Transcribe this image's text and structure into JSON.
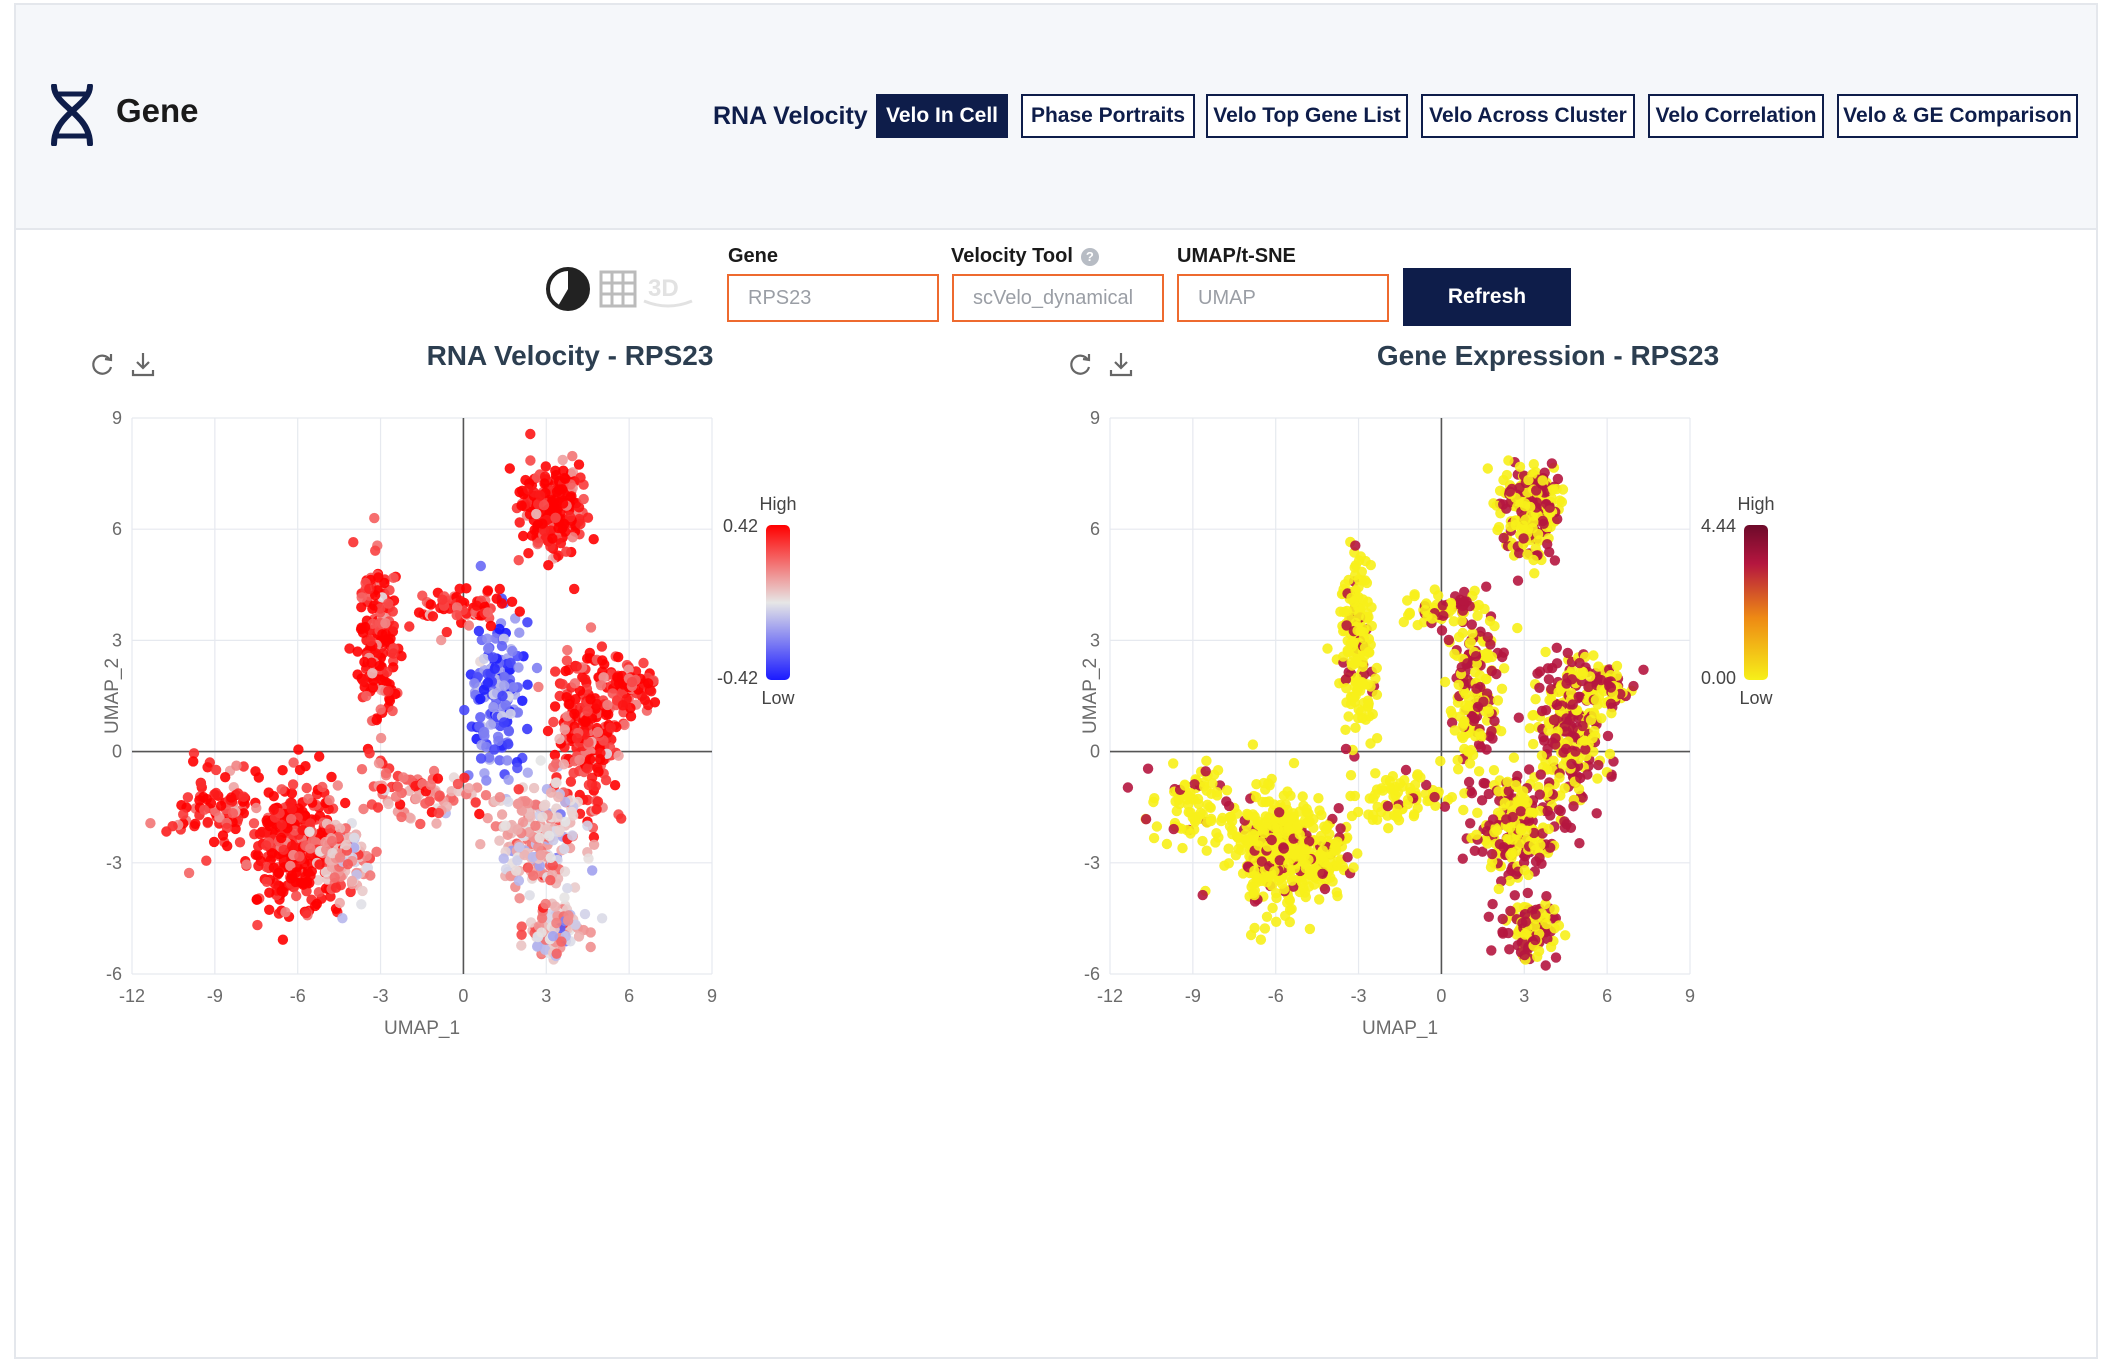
{
  "app": {
    "brand": "Gene"
  },
  "nav": {
    "section_label": "RNA Velocity",
    "tabs": [
      {
        "label": "Velo In Cell",
        "active": true
      },
      {
        "label": "Phase Portraits",
        "active": false
      },
      {
        "label": "Velo Top Gene List",
        "active": false
      },
      {
        "label": "Velo Across Cluster",
        "active": false
      },
      {
        "label": "Velo Correlation",
        "active": false
      },
      {
        "label": "Velo & GE Comparison",
        "active": false
      }
    ]
  },
  "view_icons": [
    "pie-chart-icon",
    "table-grid-icon",
    "3d-icon"
  ],
  "controls": {
    "gene": {
      "label": "Gene",
      "value": "RPS23"
    },
    "velocity_tool": {
      "label": "Velocity Tool",
      "value": "scVelo_dynamical",
      "help": "?"
    },
    "embedding": {
      "label": "UMAP/t-SNE",
      "value": "UMAP"
    },
    "refresh_label": "Refresh"
  },
  "colors": {
    "navy": "#0e1d4a",
    "orange_border": "#ee6a2f",
    "velo_high": "#ff0000",
    "velo_mid": "#e6e6e6",
    "velo_low": "#1a1aff",
    "ge_high": "#b5163f",
    "ge_low": "#f7f019"
  },
  "chart_data": [
    {
      "type": "scatter",
      "title": "RNA Velocity - RPS23",
      "xlabel": "UMAP_1",
      "ylabel": "UMAP_2",
      "xlim": [
        -12,
        9
      ],
      "ylim": [
        -6,
        9
      ],
      "xticks": [
        "-12",
        "-9",
        "-6",
        "-3",
        "0",
        "3",
        "6",
        "9"
      ],
      "yticks": [
        "-6",
        "-3",
        "0",
        "3",
        "6",
        "9"
      ],
      "colorbar": {
        "high_label": "High",
        "low_label": "Low",
        "max": "0.42",
        "min": "-0.42"
      },
      "clusters": [
        {
          "center": [
            3.2,
            6.5
          ],
          "spread": [
            0.7,
            0.8
          ],
          "n": 230,
          "value": 0.4
        },
        {
          "center": [
            -3.1,
            2.9
          ],
          "spread": [
            0.45,
            1.5
          ],
          "n": 180,
          "value": 0.38
        },
        {
          "center": [
            -6.1,
            -2.6
          ],
          "spread": [
            1.0,
            1.1
          ],
          "n": 340,
          "value": 0.4
        },
        {
          "center": [
            -9.0,
            -1.5
          ],
          "spread": [
            1.1,
            0.7
          ],
          "n": 90,
          "value": 0.37
        },
        {
          "center": [
            -4.3,
            -2.8
          ],
          "spread": [
            0.7,
            0.7
          ],
          "n": 120,
          "value": 0.12
        },
        {
          "center": [
            1.2,
            1.5
          ],
          "spread": [
            0.6,
            1.4
          ],
          "n": 180,
          "value": -0.25
        },
        {
          "center": [
            4.6,
            0.5
          ],
          "spread": [
            0.8,
            1.4
          ],
          "n": 260,
          "value": 0.34
        },
        {
          "center": [
            2.6,
            -2.2
          ],
          "spread": [
            1.0,
            1.0
          ],
          "n": 220,
          "value": 0.08
        },
        {
          "center": [
            3.3,
            -4.8
          ],
          "spread": [
            0.6,
            0.5
          ],
          "n": 110,
          "value": 0.05
        },
        {
          "center": [
            6.0,
            1.8
          ],
          "spread": [
            0.7,
            0.4
          ],
          "n": 70,
          "value": 0.4
        },
        {
          "center": [
            0.2,
            3.9
          ],
          "spread": [
            1.2,
            0.35
          ],
          "n": 70,
          "value": 0.36
        },
        {
          "center": [
            -1.5,
            -1.2
          ],
          "spread": [
            1.4,
            0.5
          ],
          "n": 80,
          "value": 0.2
        }
      ]
    },
    {
      "type": "scatter",
      "title": "Gene Expression - RPS23",
      "xlabel": "UMAP_1",
      "ylabel": "UMAP_2",
      "xlim": [
        -12,
        9
      ],
      "ylim": [
        -6,
        9
      ],
      "xticks": [
        "-12",
        "-9",
        "-6",
        "-3",
        "0",
        "3",
        "6",
        "9"
      ],
      "yticks": [
        "-6",
        "-3",
        "0",
        "3",
        "6",
        "9"
      ],
      "colorbar": {
        "high_label": "High",
        "low_label": "Low",
        "max": "4.44",
        "min": "0.00"
      },
      "high_fraction_left": 0.15,
      "high_fraction_right": 0.45
    }
  ]
}
